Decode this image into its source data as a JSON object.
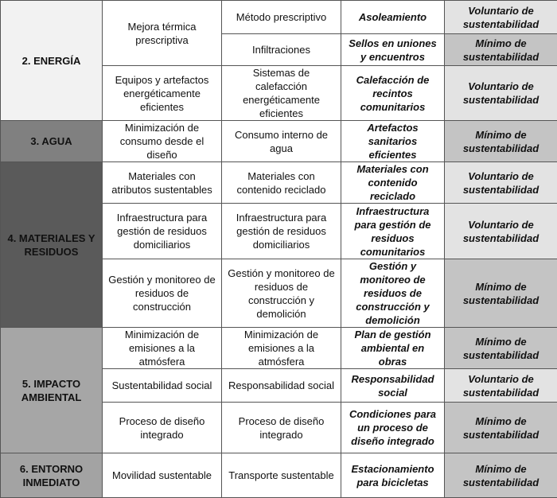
{
  "table": {
    "groups": [
      {
        "category": "2. ENERGÍA",
        "measures": [
          {
            "name": "Mejora térmica prescriptiva",
            "items": [
              {
                "item": "Método prescriptivo",
                "action": "Asoleamiento",
                "level": "Voluntario de sustentabilidad"
              },
              {
                "item": "Infiltraciones",
                "action": "Sellos en uniones y encuentros",
                "level": "Mínimo de sustentabilidad"
              }
            ]
          },
          {
            "name": "Equipos y artefactos energéticamente eficientes",
            "items": [
              {
                "item": "Sistemas de calefacción energéticamente eficientes",
                "action": "Calefacción de recintos comunitarios",
                "level": "Voluntario de sustentabilidad"
              }
            ]
          }
        ]
      },
      {
        "category": "3. AGUA",
        "measures": [
          {
            "name": "Minimización de consumo desde el diseño",
            "items": [
              {
                "item": "Consumo interno de agua",
                "action": "Artefactos sanitarios eficientes",
                "level": "Mínimo de sustentabilidad"
              }
            ]
          }
        ]
      },
      {
        "category": "4. MATERIALES Y RESIDUOS",
        "measures": [
          {
            "name": "Materiales con atributos sustentables",
            "items": [
              {
                "item": "Materiales con contenido reciclado",
                "action": "Materiales con contenido reciclado",
                "level": "Voluntario de sustentabilidad"
              }
            ]
          },
          {
            "name": "Infraestructura para gestión de residuos domiciliarios",
            "items": [
              {
                "item": "Infraestructura para gestión de residuos domiciliarios",
                "action": "Infraestructura para gestión de residuos comunitarios",
                "level": "Voluntario de sustentabilidad"
              }
            ]
          },
          {
            "name": "Gestión y monitoreo de residuos de construcción",
            "items": [
              {
                "item": "Gestión y monitoreo de residuos de construcción y demolición",
                "action": "Gestión y monitoreo de residuos de construcción y demolición",
                "level": "Mínimo de sustentabilidad"
              }
            ]
          }
        ]
      },
      {
        "category": "5. IMPACTO AMBIENTAL",
        "measures": [
          {
            "name": "Minimización de emisiones a la atmósfera",
            "items": [
              {
                "item": "Minimización de emisiones a la atmósfera",
                "action": "Plan de gestión ambiental en obras",
                "level": "Mínimo de sustentabilidad"
              }
            ]
          },
          {
            "name": "Sustentabilidad social",
            "items": [
              {
                "item": "Responsabilidad social",
                "action": "Responsabilidad social",
                "level": "Voluntario de sustentabilidad"
              }
            ]
          },
          {
            "name": "Proceso de diseño integrado",
            "items": [
              {
                "item": "Proceso de diseño integrado",
                "action": "Condiciones para un proceso de diseño integrado",
                "level": "Mínimo de sustentabilidad"
              }
            ]
          }
        ]
      },
      {
        "category": "6. ENTORNO INMEDIATO",
        "measures": [
          {
            "name": "Movilidad sustentable",
            "items": [
              {
                "item": "Transporte sustentable",
                "action": "Estacionamiento para bicicletas",
                "level": "Mínimo de sustentabilidad"
              }
            ]
          }
        ]
      }
    ]
  }
}
